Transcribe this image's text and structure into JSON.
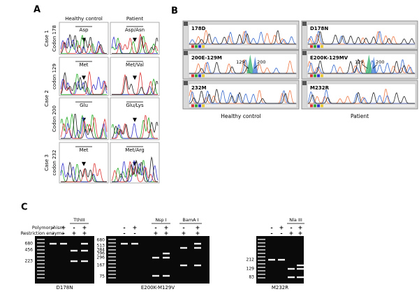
{
  "panel_a": {
    "label": "A",
    "columns": [
      "Healthy control",
      "Patient"
    ],
    "cases": [
      {
        "label": "Case 1",
        "rows": [
          {
            "codon": "Codon 178",
            "control": "Asp",
            "patient": "Asp/Asn"
          }
        ]
      },
      {
        "label": "Case 2",
        "rows": [
          {
            "codon": "codon 129",
            "control": "Met",
            "patient": "Met/Val"
          },
          {
            "codon": "Codon 200",
            "control": "Glu",
            "patient": "Glu/Lys"
          }
        ]
      },
      {
        "label": "Case 3",
        "rows": [
          {
            "codon": "codon 232",
            "control": "Met",
            "patient": "Met/Arg"
          }
        ]
      }
    ]
  },
  "panel_b": {
    "label": "B",
    "captions": [
      "Healthy control",
      "Patient"
    ],
    "screens": [
      {
        "label": "178D"
      },
      {
        "label": "D178N"
      },
      {
        "label": "200E-129M",
        "peaks": [
          "129",
          "200"
        ]
      },
      {
        "label": "E200K-129MV",
        "peaks": [
          "129",
          "200"
        ]
      },
      {
        "label": "232M"
      },
      {
        "label": "M232R"
      }
    ]
  },
  "panel_c": {
    "label": "C",
    "row_labels": [
      "Polymorphism",
      "Restriction enzyme"
    ],
    "gels": [
      {
        "name": "D178N",
        "markers": [
          "680",
          "456",
          "223"
        ],
        "polymorphism": [
          "-",
          "+",
          "-",
          "+"
        ],
        "restriction": [
          "-",
          "-",
          "+",
          "+"
        ],
        "enzymes": [
          "TthIII"
        ]
      },
      {
        "name": "E200K-M129V",
        "markers": [
          "680",
          "513",
          "384",
          "396",
          "296",
          "167",
          "75"
        ],
        "polymorphism": [
          "-",
          "+",
          "-",
          "+",
          "-",
          "+"
        ],
        "restriction": [
          "-",
          "-",
          "+",
          "+",
          "+",
          "+"
        ],
        "enzymes": [
          "Nsp I",
          "BamA I"
        ]
      },
      {
        "name": "M232R",
        "markers": [
          "212",
          "129",
          "83"
        ],
        "polymorphism": [
          "-",
          "+",
          "-",
          "+"
        ],
        "restriction": [
          "-",
          "-",
          "+",
          "+"
        ],
        "enzymes": [
          "Nla III"
        ]
      }
    ]
  }
}
